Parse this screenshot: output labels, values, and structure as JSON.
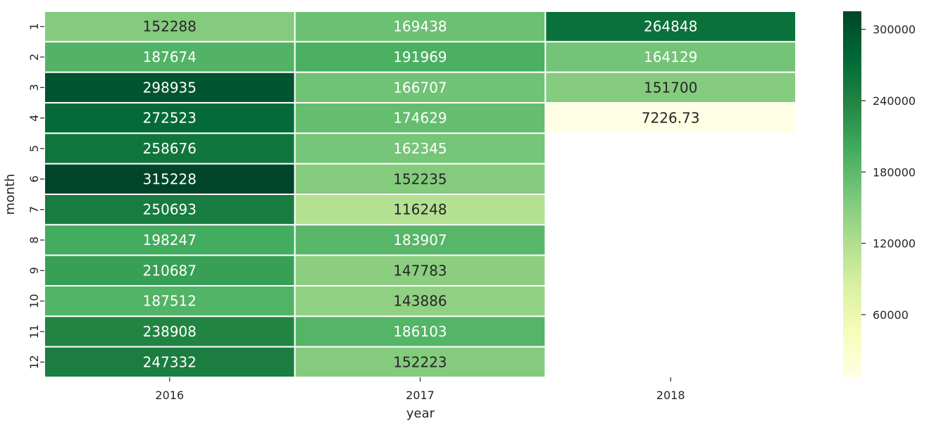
{
  "chart_data": {
    "type": "heatmap",
    "xlabel": "year",
    "ylabel": "month",
    "x_categories": [
      "2016",
      "2017",
      "2018"
    ],
    "y_categories": [
      "1",
      "2",
      "3",
      "4",
      "5",
      "6",
      "7",
      "8",
      "9",
      "10",
      "11",
      "12"
    ],
    "values": [
      [
        152288,
        169438,
        264848
      ],
      [
        187674,
        191969,
        164129
      ],
      [
        298935,
        166707,
        151700
      ],
      [
        272523,
        174629,
        7226.73
      ],
      [
        258676,
        162345,
        null
      ],
      [
        315228,
        152235,
        null
      ],
      [
        250693,
        116248,
        null
      ],
      [
        198247,
        183907,
        null
      ],
      [
        210687,
        147783,
        null
      ],
      [
        187512,
        143886,
        null
      ],
      [
        238908,
        186103,
        null
      ],
      [
        247332,
        152223,
        null
      ]
    ],
    "labels": [
      [
        "152288",
        "169438",
        "264848"
      ],
      [
        "187674",
        "191969",
        "164129"
      ],
      [
        "298935",
        "166707",
        "151700"
      ],
      [
        "272523",
        "174629",
        "7226.73"
      ],
      [
        "258676",
        "162345",
        ""
      ],
      [
        "315228",
        "152235",
        ""
      ],
      [
        "250693",
        "116248",
        ""
      ],
      [
        "198247",
        "183907",
        ""
      ],
      [
        "210687",
        "147783",
        ""
      ],
      [
        "187512",
        "143886",
        ""
      ],
      [
        "238908",
        "186103",
        ""
      ],
      [
        "247332",
        "152223",
        ""
      ]
    ],
    "colorbar": {
      "min": 7226.73,
      "max": 315228,
      "ticks": [
        60000,
        120000,
        180000,
        240000,
        300000
      ],
      "tick_labels": [
        "60000",
        "120000",
        "180000",
        "240000",
        "300000"
      ],
      "colormap": "YlGn",
      "colors": [
        "#ffffe5",
        "#f7fcb9",
        "#d9f0a3",
        "#addd8e",
        "#78c679",
        "#41ab5d",
        "#238443",
        "#006837",
        "#004529"
      ]
    },
    "grid": false,
    "legend": "colorbar-right"
  }
}
